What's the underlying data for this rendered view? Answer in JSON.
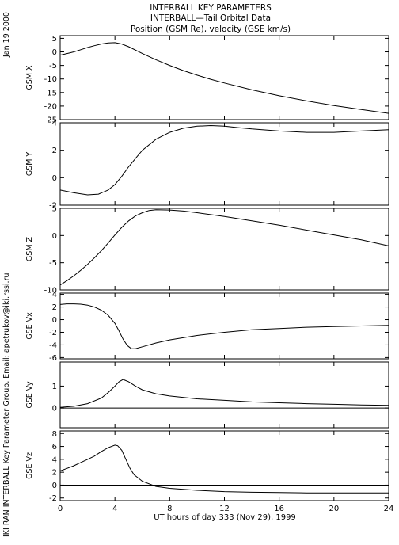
{
  "header": {
    "title1": "INTERBALL KEY PARAMETERS",
    "title2": "INTERBALL—Tail Orbital Data",
    "title3": "Position (GSM Re), velocity (GSE km/s)"
  },
  "side": {
    "date": "Jan 19 2000",
    "credit": "IKI RAN INTERBALL Key Parameter Group, Email: apetrukov@iki.rssi.ru"
  },
  "chart_data": {
    "type": "line",
    "xlabel": "UT hours of day 333 (Nov 29), 1999",
    "xlim": [
      0,
      24
    ],
    "xticks": [
      0,
      4,
      8,
      12,
      16,
      20,
      24
    ],
    "panels": [
      {
        "ylabel": "GSM X",
        "ylim": [
          -25,
          6
        ],
        "yticks": [
          5,
          0,
          -5,
          -10,
          -15,
          -20,
          -25
        ],
        "zero_line": false,
        "x": [
          0,
          0.5,
          1,
          1.5,
          2,
          2.5,
          3,
          3.5,
          4,
          4.5,
          5,
          6,
          7,
          8,
          9,
          10,
          11,
          12,
          14,
          16,
          18,
          20,
          22,
          24
        ],
        "y": [
          -1.2,
          -0.6,
          0.0,
          0.8,
          1.6,
          2.3,
          2.9,
          3.3,
          3.4,
          2.9,
          1.9,
          -0.6,
          -2.9,
          -5.0,
          -6.9,
          -8.6,
          -10.1,
          -11.5,
          -14.0,
          -16.2,
          -18.1,
          -19.8,
          -21.3,
          -22.7
        ]
      },
      {
        "ylabel": "GSM Y",
        "ylim": [
          -2,
          4
        ],
        "yticks": [
          4,
          2,
          0,
          -2
        ],
        "zero_line": false,
        "x": [
          0,
          1,
          2,
          2.8,
          3.5,
          4,
          4.5,
          5,
          5.5,
          6,
          7,
          8,
          9,
          10,
          11,
          12,
          13,
          14,
          16,
          18,
          20,
          22,
          24
        ],
        "y": [
          -0.9,
          -1.1,
          -1.25,
          -1.2,
          -0.9,
          -0.5,
          0.1,
          0.8,
          1.4,
          2.0,
          2.8,
          3.3,
          3.6,
          3.75,
          3.8,
          3.75,
          3.65,
          3.55,
          3.4,
          3.3,
          3.3,
          3.4,
          3.5
        ]
      },
      {
        "ylabel": "GSM Z",
        "ylim": [
          -10,
          5
        ],
        "yticks": [
          5,
          0,
          -5,
          -10
        ],
        "zero_line": false,
        "x": [
          0,
          0.5,
          1,
          1.5,
          2,
          2.5,
          3,
          3.5,
          4,
          4.5,
          5,
          5.5,
          6,
          6.5,
          7,
          8,
          9,
          10,
          12,
          14,
          16,
          18,
          20,
          22,
          24
        ],
        "y": [
          -9.1,
          -8.3,
          -7.4,
          -6.4,
          -5.3,
          -4.1,
          -2.8,
          -1.4,
          0.1,
          1.5,
          2.7,
          3.6,
          4.2,
          4.6,
          4.75,
          4.7,
          4.5,
          4.2,
          3.5,
          2.7,
          1.9,
          1.0,
          0.1,
          -0.8,
          -1.9
        ]
      },
      {
        "ylabel": "GSE Vx",
        "ylim": [
          -6.2,
          4.2
        ],
        "yticks": [
          4,
          2,
          0,
          -2,
          -4,
          -6
        ],
        "zero_line": false,
        "x": [
          0,
          0.5,
          1,
          1.5,
          2,
          2.5,
          3,
          3.5,
          4,
          4.3,
          4.6,
          4.9,
          5.2,
          5.5,
          6,
          7,
          8,
          10,
          12,
          14,
          16,
          18,
          20,
          22,
          24
        ],
        "y": [
          2.4,
          2.5,
          2.5,
          2.45,
          2.3,
          2.0,
          1.5,
          0.7,
          -0.6,
          -1.8,
          -3.1,
          -4.1,
          -4.6,
          -4.6,
          -4.3,
          -3.7,
          -3.2,
          -2.5,
          -2.0,
          -1.6,
          -1.4,
          -1.2,
          -1.1,
          -1.0,
          -0.9
        ]
      },
      {
        "ylabel": "GSE Vy",
        "ylim": [
          -0.9,
          2.1
        ],
        "yticks": [
          1,
          0
        ],
        "zero_line": true,
        "x": [
          0,
          1,
          2,
          3,
          3.5,
          4,
          4.3,
          4.6,
          5,
          5.5,
          6,
          7,
          8,
          10,
          12,
          14,
          16,
          18,
          20,
          22,
          24
        ],
        "y": [
          0.03,
          0.08,
          0.2,
          0.45,
          0.7,
          1.0,
          1.2,
          1.3,
          1.2,
          1.0,
          0.83,
          0.65,
          0.55,
          0.42,
          0.35,
          0.28,
          0.24,
          0.2,
          0.17,
          0.14,
          0.12
        ]
      },
      {
        "ylabel": "GSE Vz",
        "ylim": [
          -2.4,
          8.4
        ],
        "yticks": [
          8,
          6,
          4,
          2,
          0,
          -2
        ],
        "zero_line": true,
        "x": [
          0,
          0.5,
          1,
          1.5,
          2,
          2.5,
          3,
          3.5,
          4,
          4.2,
          4.5,
          4.8,
          5.1,
          5.4,
          6,
          7,
          8,
          10,
          12,
          14,
          16,
          18,
          20,
          22,
          24
        ],
        "y": [
          2.2,
          2.6,
          3.0,
          3.5,
          4.0,
          4.5,
          5.2,
          5.8,
          6.2,
          6.1,
          5.4,
          4.0,
          2.6,
          1.6,
          0.6,
          -0.2,
          -0.5,
          -0.8,
          -1.0,
          -1.1,
          -1.15,
          -1.2,
          -1.2,
          -1.2,
          -1.2
        ]
      }
    ]
  }
}
